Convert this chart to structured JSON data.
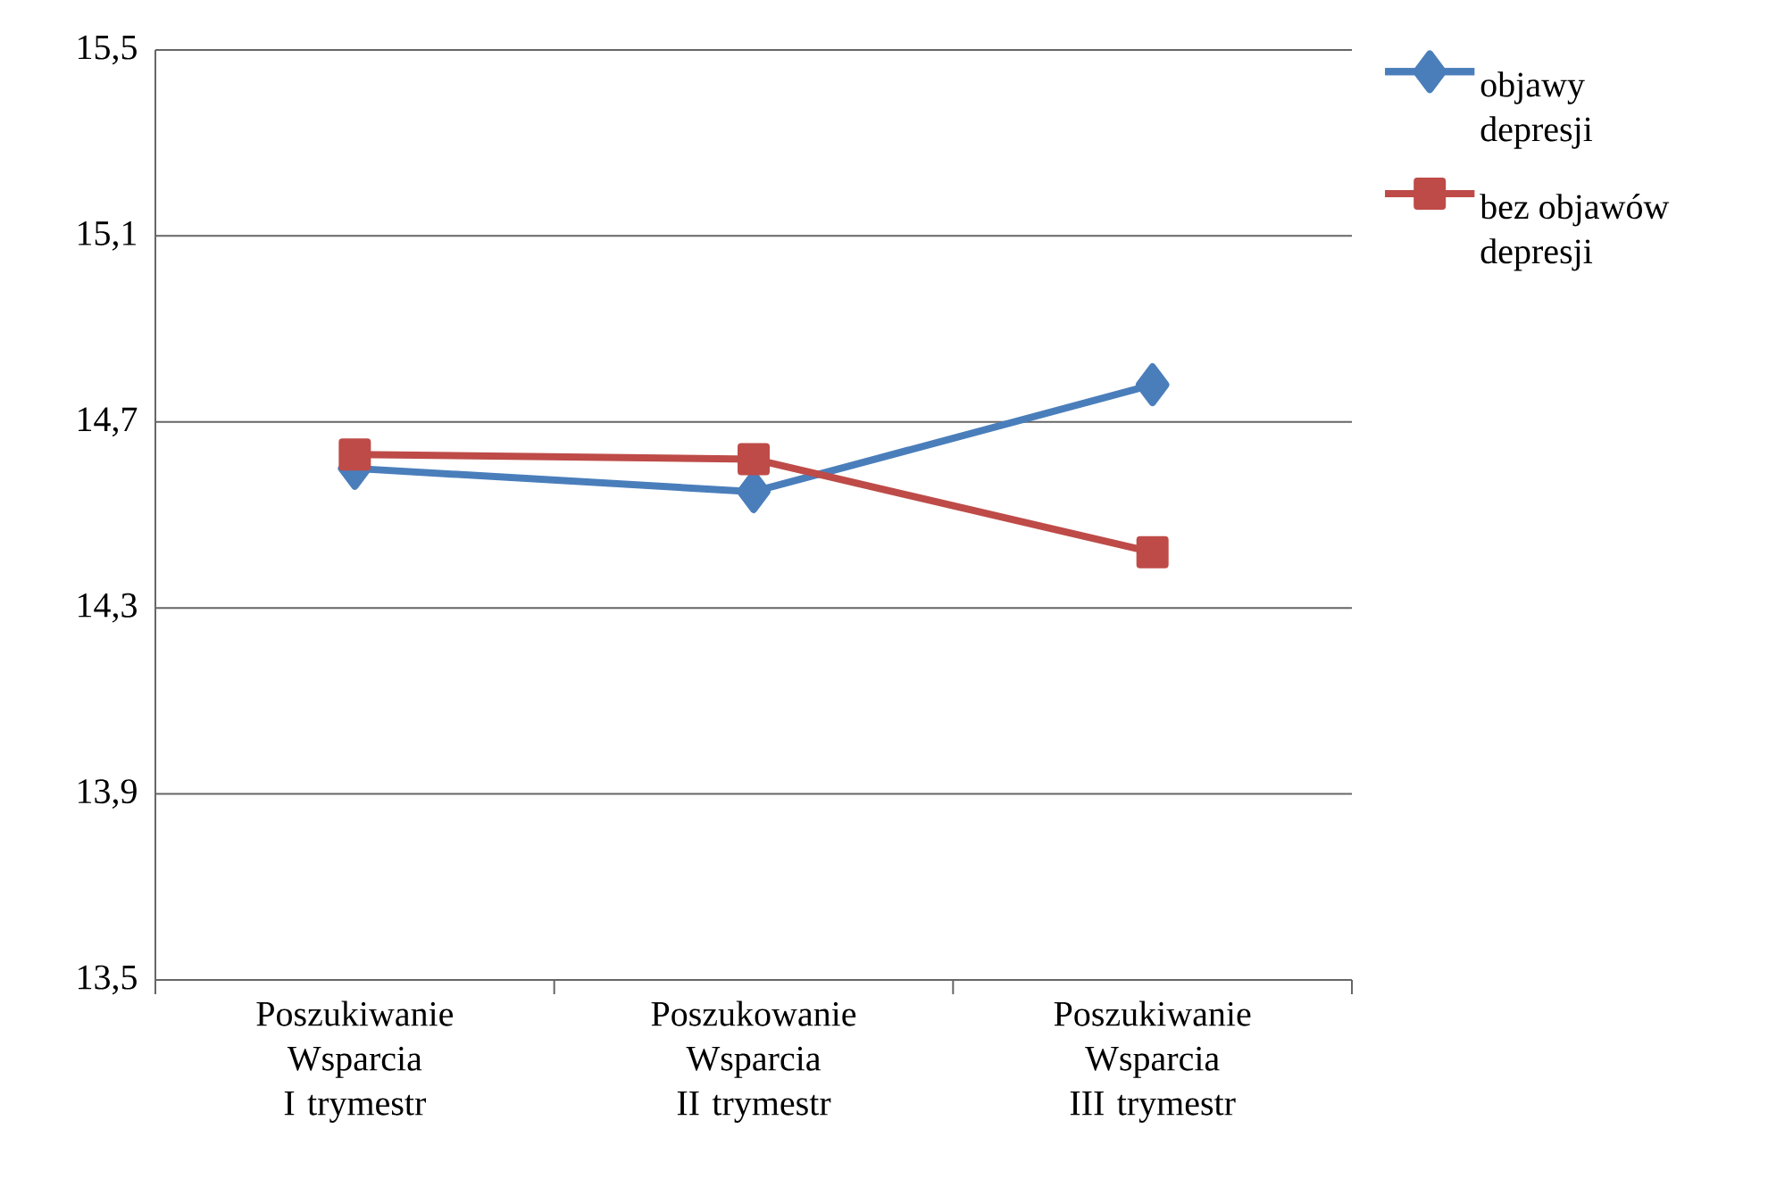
{
  "chart_data": {
    "type": "line",
    "categories": [
      "Poszukiwanie Wsparcia I trymestr",
      "Poszukowanie Wsparcia II trymestr",
      "Poszukiwanie Wsparcia III trymestr"
    ],
    "series": [
      {
        "name": "objawy depresji",
        "color": "#4a7ebb",
        "marker": "diamond",
        "values": [
          14.6,
          14.55,
          14.78
        ]
      },
      {
        "name": "bez objawów depresji",
        "color": "#be4b48",
        "marker": "square",
        "values": [
          14.63,
          14.62,
          14.42
        ]
      }
    ],
    "ylim": [
      13.5,
      15.5
    ],
    "yticks": [
      {
        "value": 13.5,
        "label": "13,5"
      },
      {
        "value": 13.9,
        "label": "13,9"
      },
      {
        "value": 14.3,
        "label": "14,3"
      },
      {
        "value": 14.7,
        "label": "14,7"
      },
      {
        "value": 15.1,
        "label": "15,1"
      },
      {
        "value": 15.5,
        "label": "15,5"
      }
    ],
    "grid": "y",
    "legend": "right",
    "line_style": "solid"
  }
}
